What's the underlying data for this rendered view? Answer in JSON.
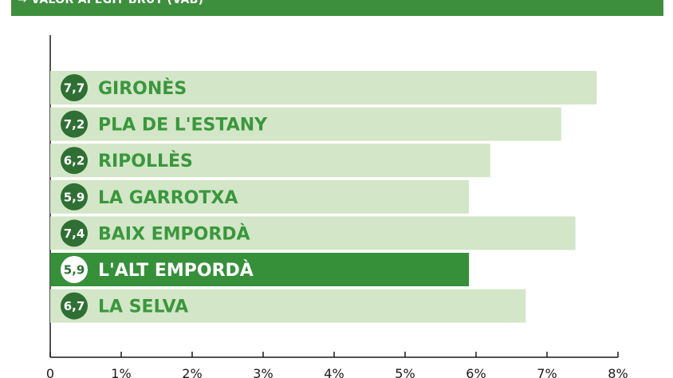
{
  "header": {
    "title": "→ VALOR AFEGIT BRUT (VAB)"
  },
  "colors": {
    "header_bg": "#3d8f3e",
    "bar_light": "#d3e6c8",
    "bar_highlight": "#36903a",
    "label_green": "#3a973c",
    "badge_dark": "#2f6f34",
    "badge_highlight_text": "#2f6f34",
    "axis": "#1a1a1a"
  },
  "chart_data": {
    "type": "bar",
    "orientation": "horizontal",
    "categories": [
      "GIRONÈS",
      "PLA DE L'ESTANY",
      "RIPOLLÈS",
      "LA GARROTXA",
      "BAIX EMPORDÀ",
      "L'ALT EMPORDÀ",
      "LA SELVA"
    ],
    "values": [
      7.7,
      7.2,
      6.2,
      5.9,
      7.4,
      5.9,
      6.7
    ],
    "value_labels": [
      "7,7",
      "7,2",
      "6,2",
      "5,9",
      "7,4",
      "5,9",
      "6,7"
    ],
    "highlight": "L'ALT EMPORDÀ",
    "xlim": [
      0,
      8
    ],
    "x_ticks": [
      0,
      1,
      2,
      3,
      4,
      5,
      6,
      7,
      8
    ],
    "x_tick_labels": [
      "0",
      "1%",
      "2%",
      "3%",
      "4%",
      "5%",
      "6%",
      "7%",
      "8%"
    ],
    "title": "",
    "xlabel": "",
    "ylabel": "",
    "grid": false
  }
}
